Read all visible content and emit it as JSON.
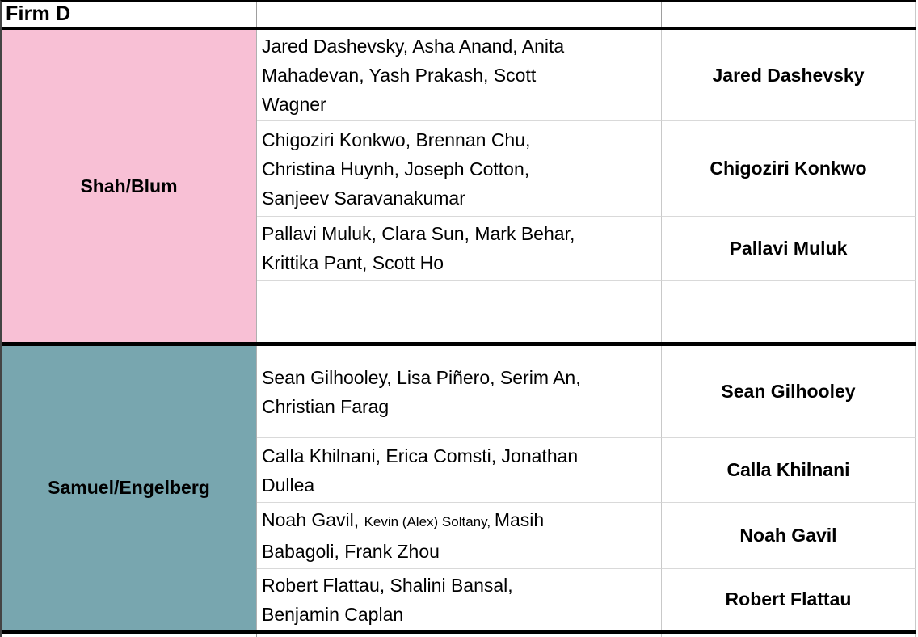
{
  "header": {
    "title": "Firm D"
  },
  "groups": [
    {
      "name": "Shah/Blum",
      "color": "#f8c0d5",
      "rows": [
        {
          "members": "Jared Dashevsky, Asha Anand, Anita\nMahadevan, Yash Prakash, Scott\nWagner",
          "lead": "Jared Dashevsky"
        },
        {
          "members": "Chigoziri Konkwo, Brennan Chu,\nChristina Huynh, Joseph Cotton,\nSanjeev Saravanakumar",
          "lead": "Chigoziri Konkwo"
        },
        {
          "members": "Pallavi Muluk, Clara Sun, Mark Behar,\nKrittika Pant, Scott Ho",
          "lead": "Pallavi Muluk"
        },
        {
          "members": "",
          "lead": ""
        }
      ]
    },
    {
      "name": "Samuel/Engelberg",
      "color": "#78a6af",
      "rows": [
        {
          "members": "Sean Gilhooley, Lisa Piñero, Serim An,\nChristian Farag",
          "lead": "Sean Gilhooley"
        },
        {
          "members": "Calla Khilnani, Erica Comsti, Jonathan\nDullea",
          "lead": "Calla Khilnani"
        },
        {
          "members_prefix": "Noah Gavil, ",
          "members_small": "Kevin (Alex) Soltany, ",
          "members_suffix": "Masih\nBabagoli, Frank Zhou",
          "lead": "Noah Gavil"
        },
        {
          "members": "Robert Flattau, Shalini Bansal,\nBenjamin Caplan",
          "lead": "Robert Flattau"
        }
      ]
    }
  ]
}
